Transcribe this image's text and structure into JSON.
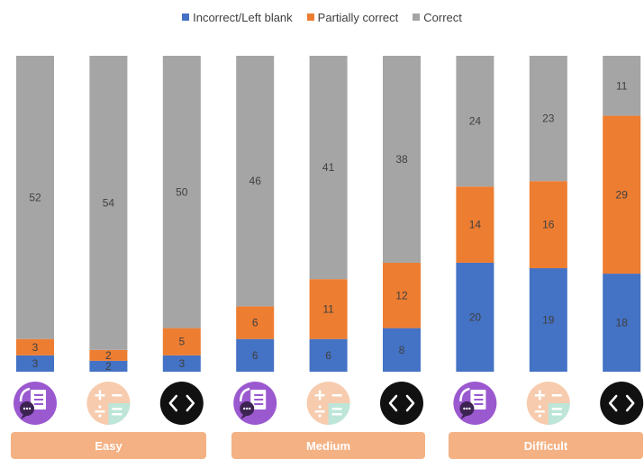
{
  "chart_data": {
    "type": "bar",
    "stacked": true,
    "x": [
      "1",
      "2",
      "3",
      "4",
      "5",
      "6",
      "7",
      "8",
      "9"
    ],
    "series": [
      {
        "name": "Incorrect/Left blank",
        "color": "#4472C4",
        "values": [
          3,
          2,
          3,
          6,
          6,
          8,
          20,
          19,
          18
        ]
      },
      {
        "name": "Partially correct",
        "color": "#ED7D31",
        "values": [
          3,
          2,
          5,
          6,
          11,
          12,
          14,
          16,
          29
        ]
      },
      {
        "name": "Correct",
        "color": "#A5A5A5",
        "values": [
          52,
          54,
          50,
          46,
          41,
          38,
          24,
          23,
          11
        ]
      }
    ],
    "legend_position": "top",
    "grid": false,
    "icons": [
      "chat-document-icon",
      "math-operators-icon",
      "code-brackets-icon",
      "chat-document-icon",
      "math-operators-icon",
      "code-brackets-icon",
      "chat-document-icon",
      "math-operators-icon",
      "code-brackets-icon"
    ],
    "groups": [
      {
        "label": "Easy",
        "color": "#F4B183"
      },
      {
        "label": "Medium",
        "color": "#F4B183"
      },
      {
        "label": "Difficult",
        "color": "#F4B183"
      }
    ]
  }
}
